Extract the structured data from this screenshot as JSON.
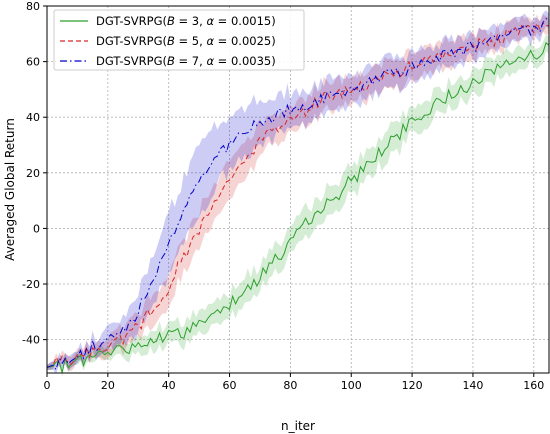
{
  "chart_data": {
    "type": "line",
    "title": "",
    "xlabel": "n_iter",
    "ylabel": "Averaged Global Return",
    "xlim": [
      0,
      165
    ],
    "ylim": [
      -52,
      80
    ],
    "xticks": [
      0,
      20,
      40,
      60,
      80,
      100,
      120,
      140,
      160
    ],
    "yticks": [
      -40,
      -20,
      0,
      20,
      40,
      60,
      80
    ],
    "grid": true,
    "legend_position": "upper-left",
    "band": "shaded region around each curve",
    "series": [
      {
        "name": "DGT-SVRPG(B = 3, α = 0.0015)",
        "legend_prefix": "DGT-SVRPG(",
        "legend_B": "B",
        "legend_B_value": " = 3, ",
        "legend_alpha": "α",
        "legend_alpha_value": " = 0.0015)",
        "color": "#2ca02c",
        "dash": "solid",
        "x": [
          0,
          5,
          10,
          15,
          20,
          25,
          30,
          35,
          40,
          45,
          50,
          55,
          60,
          65,
          70,
          75,
          80,
          85,
          90,
          95,
          100,
          105,
          110,
          115,
          120,
          125,
          130,
          135,
          140,
          145,
          150,
          155,
          160,
          165
        ],
        "y": [
          -50,
          -49,
          -48,
          -46,
          -45,
          -43,
          -42,
          -40,
          -39,
          -37,
          -34,
          -31,
          -27,
          -22,
          -17,
          -11,
          -5,
          1,
          7,
          12,
          17,
          23,
          28,
          33,
          38,
          42,
          46,
          50,
          53,
          56,
          59,
          61,
          63,
          65
        ],
        "band_half_width": [
          1,
          1.5,
          2,
          2,
          2.5,
          3,
          3,
          3.5,
          3.5,
          4,
          4,
          4.5,
          4.5,
          5,
          5,
          5,
          5,
          5,
          5,
          5,
          5,
          5,
          5,
          5,
          5,
          5,
          4.5,
          4.5,
          4.5,
          4,
          4,
          4,
          3.5,
          3
        ]
      },
      {
        "name": "DGT-SVRPG(B = 5, α = 0.0025)",
        "legend_prefix": "DGT-SVRPG(",
        "legend_B": "B",
        "legend_B_value": " = 5, ",
        "legend_alpha": "α",
        "legend_alpha_value": " = 0.0025)",
        "color": "#d62728",
        "dash": "dashed",
        "x": [
          0,
          5,
          10,
          15,
          20,
          25,
          30,
          35,
          40,
          45,
          50,
          55,
          60,
          65,
          70,
          75,
          80,
          85,
          90,
          95,
          100,
          105,
          110,
          115,
          120,
          125,
          130,
          135,
          140,
          145,
          150,
          155,
          160,
          165
        ],
        "y": [
          -50,
          -48,
          -46,
          -44,
          -42,
          -39,
          -35,
          -29,
          -21,
          -10,
          0,
          10,
          18,
          25,
          31,
          36,
          40,
          43,
          46,
          48,
          50,
          52,
          54,
          56,
          58,
          60,
          62,
          64,
          66,
          68,
          69,
          71,
          72,
          73
        ],
        "band_half_width": [
          1,
          2,
          2.5,
          3,
          3.5,
          4,
          4.5,
          5.5,
          6,
          6.5,
          7,
          7,
          6.5,
          6,
          5.5,
          5,
          5,
          5,
          5,
          5,
          5,
          5,
          5,
          5,
          5,
          5,
          5,
          4.5,
          4.5,
          4,
          4,
          3.5,
          3,
          3
        ]
      },
      {
        "name": "DGT-SVRPG(B = 7, α = 0.0035)",
        "legend_prefix": "DGT-SVRPG(",
        "legend_B": "B",
        "legend_B_value": " = 7, ",
        "legend_alpha": "α",
        "legend_alpha_value": " = 0.0035)",
        "color": "#0000cc",
        "dash": "dashdot",
        "x": [
          0,
          5,
          10,
          15,
          20,
          25,
          30,
          35,
          40,
          45,
          50,
          55,
          60,
          65,
          70,
          75,
          80,
          85,
          90,
          95,
          100,
          105,
          110,
          115,
          120,
          125,
          130,
          135,
          140,
          145,
          150,
          155,
          160,
          165
        ],
        "y": [
          -50,
          -48,
          -46,
          -43,
          -40,
          -36,
          -30,
          -18,
          -5,
          8,
          18,
          25,
          30,
          34,
          37,
          40,
          42,
          44,
          46,
          48,
          50,
          52,
          54,
          56,
          58,
          60,
          62,
          64,
          66,
          68,
          70,
          71,
          72,
          74
        ],
        "band_half_width": [
          1,
          2,
          2.5,
          3,
          4,
          5,
          7,
          9,
          11,
          12,
          12,
          11,
          10,
          9,
          8,
          7,
          6.5,
          6,
          6,
          6,
          5.5,
          5.5,
          5.5,
          5.5,
          5,
          5,
          5,
          5,
          4.5,
          4.5,
          4,
          4,
          3.5,
          3
        ]
      }
    ]
  }
}
